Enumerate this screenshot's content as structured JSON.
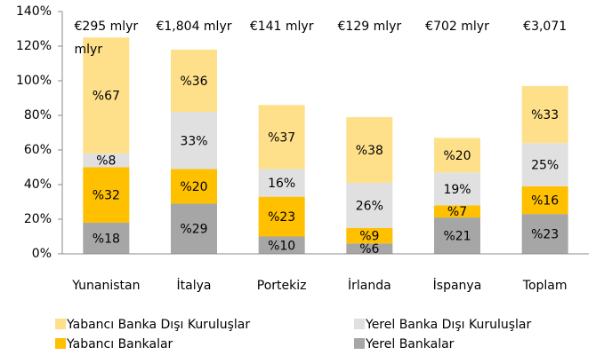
{
  "chart_data": {
    "type": "stacked_bar",
    "categories": [
      "Yunanistan",
      "İtalya",
      "Portekiz",
      "İrlanda",
      "İspanya",
      "Toplam"
    ],
    "annotations": [
      [
        "€295 mlyr",
        "mlyr"
      ],
      [
        "€1,804 mlyr"
      ],
      [
        "€141 mlyr"
      ],
      [
        "€129 mlyr"
      ],
      [
        "€702 mlyr"
      ],
      [
        "€3,071"
      ]
    ],
    "series": [
      {
        "name": "Yerel Bankalar",
        "color": "#a6a6a6",
        "values": [
          18,
          29,
          10,
          6,
          21,
          23
        ],
        "value_labels": [
          "%18",
          "%29",
          "%10",
          "%6",
          "%21",
          "%23"
        ]
      },
      {
        "name": "Yabancı Bankalar",
        "color": "#ffc000",
        "values": [
          32,
          20,
          23,
          9,
          7,
          16
        ],
        "value_labels": [
          "%32",
          "%20",
          "%23",
          "%9",
          "%7",
          "%16"
        ]
      },
      {
        "name": "Yerel Banka Dışı Kuruluşlar",
        "color": "#e0e0e0",
        "values": [
          8,
          33,
          16,
          26,
          19,
          25
        ],
        "value_labels": [
          "%8",
          "33%",
          "16%",
          "26%",
          "19%",
          "25%"
        ]
      },
      {
        "name": "Yabancı Banka Dışı Kuruluşlar",
        "color": "#ffe08a",
        "values": [
          67,
          36,
          37,
          38,
          20,
          33
        ],
        "value_labels": [
          "%67",
          "%36",
          "%37",
          "%38",
          "%20",
          "%33"
        ]
      }
    ],
    "ylim": [
      0,
      140
    ],
    "yticks": [
      {
        "value": 0,
        "label": "0%"
      },
      {
        "value": 20,
        "label": "20%"
      },
      {
        "value": 40,
        "label": "40%"
      },
      {
        "value": 60,
        "label": "60%"
      },
      {
        "value": 80,
        "label": "80%"
      },
      {
        "value": 100,
        "label": "100%"
      },
      {
        "value": 120,
        "label": "120%"
      },
      {
        "value": 140,
        "label": "140%"
      }
    ],
    "grid": false
  }
}
